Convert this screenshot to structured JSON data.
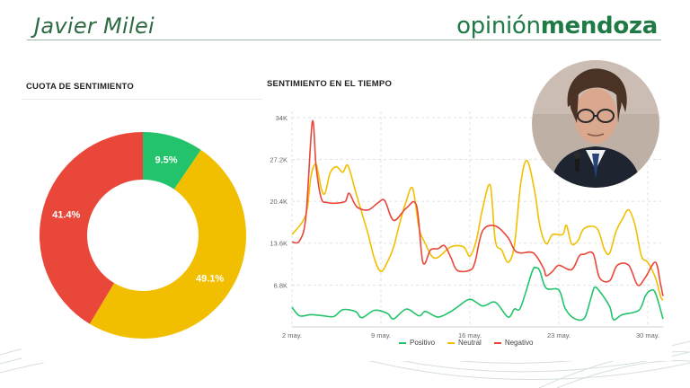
{
  "header": {
    "title": "Javier Milei",
    "brand_part1": "opinión",
    "brand_part2": "mendoza"
  },
  "panels": {
    "donut_title": "CUOTA DE SENTIMIENTO",
    "line_title": "SENTIMIENTO EN EL TIEMPO"
  },
  "colors": {
    "positivo": "#22c36b",
    "neutral": "#f2bf00",
    "negativo": "#e8473a",
    "brand": "#1f7a45"
  },
  "chart_data": [
    {
      "type": "pie",
      "title": "CUOTA DE SENTIMIENTO",
      "slices": [
        {
          "label": "Positivo",
          "value": 9.5,
          "display": "9.5%",
          "color": "#22c36b"
        },
        {
          "label": "Neutral",
          "value": 49.1,
          "display": "49.1%",
          "color": "#f2bf00"
        },
        {
          "label": "Negativo",
          "value": 41.4,
          "display": "41.4%",
          "color": "#e8473a"
        }
      ]
    },
    {
      "type": "line",
      "title": "SENTIMIENTO EN EL TIEMPO",
      "x_start_label": "2 may.",
      "x_ticks": [
        {
          "label": "2 may.",
          "day": 0
        },
        {
          "label": "9 may.",
          "day": 7
        },
        {
          "label": "16 may.",
          "day": 14
        },
        {
          "label": "23 may.",
          "day": 21
        },
        {
          "label": "30 may.",
          "day": 28
        }
      ],
      "y_ticks": [
        {
          "label": "6.8K",
          "value": 6800
        },
        {
          "label": "13.6K",
          "value": 13600
        },
        {
          "label": "20.4K",
          "value": 20400
        },
        {
          "label": "27.2K",
          "value": 27200
        },
        {
          "label": "34K",
          "value": 34000
        }
      ],
      "ylim": [
        0,
        35000
      ],
      "xlim": [
        0,
        29.2
      ],
      "legend": [
        "Positivo",
        "Neutral",
        "Negativo"
      ],
      "series": [
        {
          "name": "Positivo",
          "color": "#22c36b",
          "points": [
            [
              0,
              3200
            ],
            [
              0.6,
              1800
            ],
            [
              1.5,
              2000
            ],
            [
              2.5,
              1800
            ],
            [
              3.3,
              1700
            ],
            [
              4,
              2800
            ],
            [
              5,
              2500
            ],
            [
              5.5,
              1500
            ],
            [
              6.5,
              2700
            ],
            [
              7.5,
              2200
            ],
            [
              8,
              1300
            ],
            [
              9,
              2900
            ],
            [
              10,
              1800
            ],
            [
              10.5,
              2500
            ],
            [
              11.5,
              1600
            ],
            [
              12.5,
              2500
            ],
            [
              13,
              3200
            ],
            [
              14,
              4500
            ],
            [
              15,
              3400
            ],
            [
              16,
              4000
            ],
            [
              17,
              1600
            ],
            [
              17.5,
              2900
            ],
            [
              18,
              3200
            ],
            [
              18.9,
              9000
            ],
            [
              19.2,
              9600
            ],
            [
              19.5,
              9100
            ],
            [
              20,
              6300
            ],
            [
              21,
              6000
            ],
            [
              21.5,
              3000
            ],
            [
              22.2,
              1400
            ],
            [
              23,
              1400
            ],
            [
              23.5,
              4500
            ],
            [
              23.8,
              6400
            ],
            [
              24.2,
              5800
            ],
            [
              25,
              3300
            ],
            [
              25.3,
              1200
            ],
            [
              26,
              2000
            ],
            [
              27.3,
              2700
            ],
            [
              27.8,
              5000
            ],
            [
              28.2,
              5900
            ],
            [
              28.6,
              5500
            ],
            [
              29.2,
              1300
            ]
          ]
        },
        {
          "name": "Neutral",
          "color": "#f2bf00",
          "points": [
            [
              0,
              15000
            ],
            [
              0.8,
              17000
            ],
            [
              1.2,
              19200
            ],
            [
              1.5,
              24500
            ],
            [
              1.9,
              26400
            ],
            [
              2.3,
              22500
            ],
            [
              2.6,
              21700
            ],
            [
              3,
              25000
            ],
            [
              3.5,
              26000
            ],
            [
              4,
              25100
            ],
            [
              4.4,
              26200
            ],
            [
              5,
              22000
            ],
            [
              5.5,
              18500
            ],
            [
              6,
              15000
            ],
            [
              6.5,
              11000
            ],
            [
              7,
              9000
            ],
            [
              7.5,
              10500
            ],
            [
              8,
              13000
            ],
            [
              8.5,
              17000
            ],
            [
              9,
              20500
            ],
            [
              9.5,
              22500
            ],
            [
              10,
              16000
            ],
            [
              10.5,
              13500
            ],
            [
              11,
              11500
            ],
            [
              11.5,
              11300
            ],
            [
              12.5,
              13000
            ],
            [
              13.5,
              13000
            ],
            [
              14,
              11500
            ],
            [
              14.5,
              14000
            ],
            [
              15,
              19200
            ],
            [
              15.6,
              23000
            ],
            [
              16,
              14000
            ],
            [
              16.5,
              12500
            ],
            [
              17,
              10500
            ],
            [
              17.5,
              13200
            ],
            [
              18,
              23300
            ],
            [
              18.5,
              27000
            ],
            [
              19.1,
              22000
            ],
            [
              19.5,
              16500
            ],
            [
              20,
              13500
            ],
            [
              20.5,
              15000
            ],
            [
              21.3,
              15000
            ],
            [
              21.6,
              16500
            ],
            [
              22,
              13500
            ],
            [
              22.5,
              14000
            ],
            [
              23,
              16000
            ],
            [
              24,
              16000
            ],
            [
              24.6,
              12500
            ],
            [
              25,
              12000
            ],
            [
              25.5,
              15500
            ],
            [
              26,
              17500
            ],
            [
              26.5,
              19000
            ],
            [
              27,
              16500
            ],
            [
              27.5,
              11500
            ],
            [
              28,
              10500
            ],
            [
              28.6,
              8000
            ],
            [
              29,
              5000
            ],
            [
              29.2,
              4300
            ]
          ]
        },
        {
          "name": "Negativo",
          "color": "#e8473a",
          "points": [
            [
              0,
              13800
            ],
            [
              0.6,
              14000
            ],
            [
              1.1,
              18000
            ],
            [
              1.6,
              33300
            ],
            [
              1.9,
              26000
            ],
            [
              2.3,
              20900
            ],
            [
              2.8,
              20200
            ],
            [
              3.5,
              20100
            ],
            [
              4.2,
              20400
            ],
            [
              4.5,
              21700
            ],
            [
              5.1,
              19500
            ],
            [
              6,
              19000
            ],
            [
              6.8,
              20200
            ],
            [
              7.3,
              20500
            ],
            [
              8,
              17300
            ],
            [
              9,
              19300
            ],
            [
              9.8,
              19700
            ],
            [
              10.3,
              10500
            ],
            [
              10.9,
              12500
            ],
            [
              11.5,
              12700
            ],
            [
              12,
              13200
            ],
            [
              12.5,
              11300
            ],
            [
              13,
              9200
            ],
            [
              14,
              9200
            ],
            [
              14.4,
              10500
            ],
            [
              15,
              15600
            ],
            [
              16,
              16400
            ],
            [
              17,
              14500
            ],
            [
              17.5,
              12500
            ],
            [
              18,
              12000
            ],
            [
              19,
              12000
            ],
            [
              19.8,
              9500
            ],
            [
              20,
              8300
            ],
            [
              20.5,
              9000
            ],
            [
              21,
              10000
            ],
            [
              22,
              9300
            ],
            [
              22.6,
              11500
            ],
            [
              23,
              11800
            ],
            [
              23.7,
              11900
            ],
            [
              24.2,
              8000
            ],
            [
              25,
              7500
            ],
            [
              25.6,
              10000
            ],
            [
              26.5,
              10000
            ],
            [
              27.2,
              6800
            ],
            [
              27.8,
              8000
            ],
            [
              28.6,
              10500
            ],
            [
              29,
              7000
            ],
            [
              29.2,
              5000
            ]
          ]
        }
      ]
    }
  ]
}
